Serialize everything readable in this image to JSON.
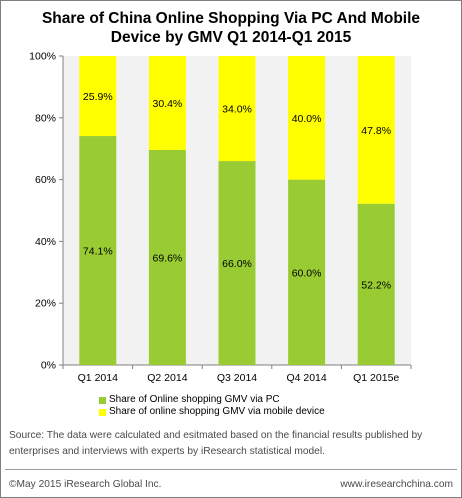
{
  "colors": {
    "pc": "#99CC33",
    "mobile": "#FFFF00",
    "plot_bg": "#F2F2F2"
  },
  "chart_data": {
    "type": "bar",
    "stacked": true,
    "title": "Share of China Online  Shopping Via PC And Mobile Device by GMV Q1 2014-Q1 2015",
    "title_lines": [
      "Share of China Online  Shopping Via PC And Mobile",
      "Device by GMV Q1 2014-Q1 2015"
    ],
    "categories": [
      "Q1 2014",
      "Q2 2014",
      "Q3 2014",
      "Q4 2014",
      "Q1 2015e"
    ],
    "series": [
      {
        "name": "Share of Online shopping GMV via PC",
        "values": [
          74.1,
          69.6,
          66.0,
          60.0,
          52.2
        ],
        "labels": [
          "74.1%",
          "69.6%",
          "66.0%",
          "60.0%",
          "52.2%"
        ]
      },
      {
        "name": "Share of online shopping GMV via mobile device",
        "values": [
          25.9,
          30.4,
          34.0,
          40.0,
          47.8
        ],
        "labels": [
          "25.9%",
          "30.4%",
          "34.0%",
          "40.0%",
          "47.8%"
        ]
      }
    ],
    "ylim": [
      0,
      100
    ],
    "yticks": [
      0,
      20,
      40,
      60,
      80,
      100
    ],
    "ytick_labels": [
      "0%",
      "20%",
      "40%",
      "60%",
      "80%",
      "100%"
    ],
    "xlabel": "",
    "ylabel": "",
    "grid": false,
    "legend_position": "bottom"
  },
  "source": "Source: The data  were calculated and esitmated based on the  financial results published by enterprises and interviews with experts  by iResearch statistical model.",
  "footer": {
    "copyright": "©May  2015 iResearch Global Inc.",
    "website": "www.iresearchchina.com"
  }
}
